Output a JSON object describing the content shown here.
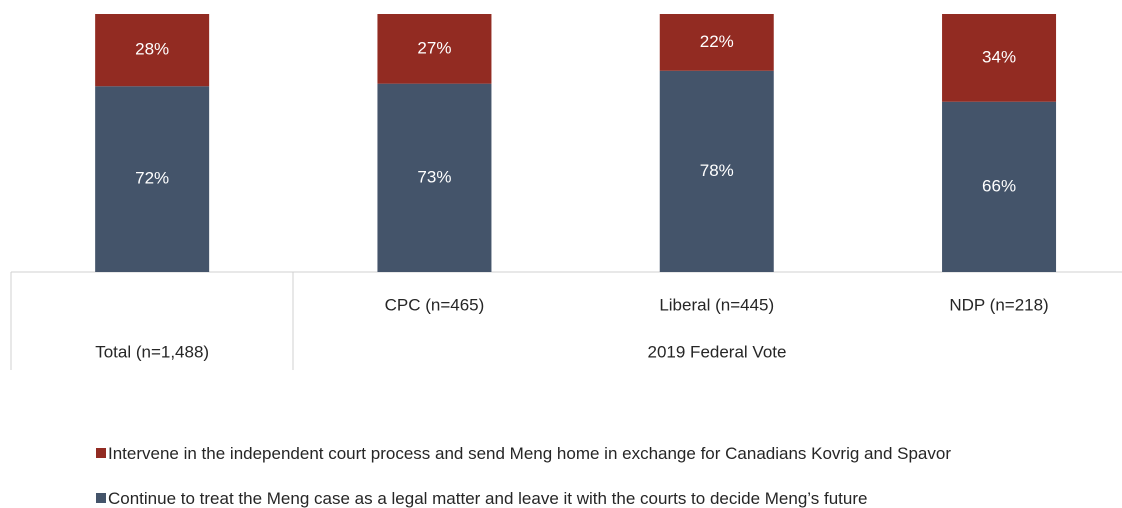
{
  "chart_data": {
    "type": "stacked_bar",
    "categories": [
      "Total (n=1,488)",
      "CPC (n=465)",
      "Liberal (n=445)",
      "NDP (n=218)"
    ],
    "group_label": "2019 Federal Vote",
    "ylim": [
      0,
      100
    ],
    "series": [
      {
        "name": "Continue to treat the Meng case as a legal matter and leave it with the courts to decide Meng’s future",
        "color": "#44546a",
        "values": [
          72,
          73,
          78,
          66
        ],
        "value_labels": [
          "72%",
          "73%",
          "78%",
          "66%"
        ]
      },
      {
        "name": "Intervene in the independent court process and send Meng home in exchange for Canadians Kovrig and Spavor",
        "color": "#922b22",
        "values": [
          28,
          27,
          22,
          34
        ],
        "value_labels": [
          "28%",
          "27%",
          "22%",
          "34%"
        ]
      }
    ]
  }
}
